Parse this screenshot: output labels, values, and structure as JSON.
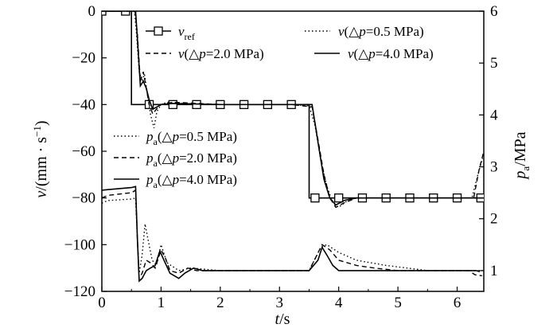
{
  "chart_data": {
    "type": "line",
    "xlabel": {
      "var": "t",
      "unit": "/s"
    },
    "ylabel_left": {
      "var": "v",
      "unit": "/(mm · s",
      "sup": "−1",
      "close": ")"
    },
    "ylabel_right": {
      "var": "p",
      "sub": "a",
      "unit": "/MPa"
    },
    "x_ticks": [
      "0",
      "1",
      "2",
      "3",
      "4",
      "5",
      "6"
    ],
    "y_left_ticks": [
      "0",
      "−20",
      "−40",
      "−60",
      "−80",
      "−100",
      "−120"
    ],
    "y_right_ticks": [
      "6",
      "5",
      "4",
      "3",
      "2",
      "1"
    ],
    "xlim": [
      0,
      6.45
    ],
    "ylim_left": [
      -120,
      0
    ],
    "ylim_right": [
      0.6,
      6
    ],
    "legend_top": [
      {
        "text": "v",
        "sub": "ref",
        "style": "square",
        "series": "v_ref"
      },
      {
        "text": "v(△p=0.5 MPa)",
        "style": "dotted",
        "series": "v_0.5"
      },
      {
        "text": "v(△p=2.0 MPa)",
        "style": "dashed",
        "series": "v_2.0"
      },
      {
        "text": "v(△p=4.0 MPa)",
        "style": "solid",
        "series": "v_4.0"
      }
    ],
    "legend_bottom": [
      {
        "pre": "p",
        "sub": "a",
        "rest": "(△p=0.5 MPa)",
        "style": "dotted"
      },
      {
        "pre": "p",
        "sub": "a",
        "rest": "(△p=2.0 MPa)",
        "style": "dashed"
      },
      {
        "pre": "p",
        "sub": "a",
        "rest": "(△p=4.0 MPa)",
        "style": "solid"
      }
    ],
    "series_velocity": [
      {
        "name": "v_ref",
        "style": "solid-square",
        "points": [
          [
            0,
            0
          ],
          [
            0.5,
            0
          ],
          [
            0.5,
            -40
          ],
          [
            3.5,
            -40
          ],
          [
            3.5,
            -80
          ],
          [
            6.45,
            -80
          ]
        ],
        "markers": [
          [
            0,
            0
          ],
          [
            0.4,
            0
          ],
          [
            0.8,
            -40
          ],
          [
            1.2,
            -40
          ],
          [
            1.6,
            -40
          ],
          [
            2.0,
            -40
          ],
          [
            2.4,
            -40
          ],
          [
            2.8,
            -40
          ],
          [
            3.2,
            -40
          ],
          [
            3.6,
            -80
          ],
          [
            4.0,
            -80
          ],
          [
            4.4,
            -80
          ],
          [
            4.8,
            -80
          ],
          [
            5.2,
            -80
          ],
          [
            5.6,
            -80
          ],
          [
            6.0,
            -80
          ],
          [
            6.4,
            -80
          ]
        ]
      },
      {
        "name": "v_0.5",
        "style": "dotted",
        "points": [
          [
            0,
            0
          ],
          [
            0.55,
            0
          ],
          [
            0.58,
            -8
          ],
          [
            0.63,
            -26
          ],
          [
            0.68,
            -30
          ],
          [
            0.72,
            -27
          ],
          [
            0.76,
            -34
          ],
          [
            0.82,
            -44
          ],
          [
            0.88,
            -50
          ],
          [
            0.93,
            -43
          ],
          [
            1.0,
            -40
          ],
          [
            1.1,
            -39
          ],
          [
            1.3,
            -39.5
          ],
          [
            2.0,
            -40
          ],
          [
            3.2,
            -40
          ],
          [
            3.5,
            -40.5
          ],
          [
            3.6,
            -49
          ],
          [
            3.7,
            -64
          ],
          [
            3.8,
            -75
          ],
          [
            3.9,
            -82
          ],
          [
            4.0,
            -84
          ],
          [
            4.2,
            -80
          ],
          [
            5.0,
            -80
          ],
          [
            6.0,
            -80
          ],
          [
            6.25,
            -80
          ],
          [
            6.35,
            -70
          ],
          [
            6.43,
            -63
          ]
        ]
      },
      {
        "name": "v_2.0",
        "style": "dashed",
        "points": [
          [
            0,
            0
          ],
          [
            0.56,
            0
          ],
          [
            0.6,
            -10
          ],
          [
            0.65,
            -30
          ],
          [
            0.7,
            -26
          ],
          [
            0.75,
            -33
          ],
          [
            0.8,
            -40
          ],
          [
            0.86,
            -44
          ],
          [
            0.92,
            -42
          ],
          [
            1.0,
            -40
          ],
          [
            1.2,
            -39
          ],
          [
            2.0,
            -40
          ],
          [
            3.2,
            -40
          ],
          [
            3.55,
            -41
          ],
          [
            3.65,
            -55
          ],
          [
            3.75,
            -70
          ],
          [
            3.85,
            -80
          ],
          [
            3.95,
            -84
          ],
          [
            4.1,
            -82
          ],
          [
            4.3,
            -80
          ],
          [
            6.0,
            -80
          ],
          [
            6.28,
            -80
          ],
          [
            6.37,
            -68
          ],
          [
            6.44,
            -61
          ]
        ]
      },
      {
        "name": "v_4.0",
        "style": "solid",
        "points": [
          [
            0,
            0
          ],
          [
            0.57,
            0
          ],
          [
            0.6,
            -12
          ],
          [
            0.65,
            -32
          ],
          [
            0.7,
            -30
          ],
          [
            0.75,
            -33
          ],
          [
            0.8,
            -38
          ],
          [
            0.86,
            -42
          ],
          [
            0.93,
            -41
          ],
          [
            1.0,
            -40
          ],
          [
            1.2,
            -39.5
          ],
          [
            2.0,
            -40
          ],
          [
            3.3,
            -40
          ],
          [
            3.55,
            -40
          ],
          [
            3.65,
            -56
          ],
          [
            3.75,
            -72
          ],
          [
            3.85,
            -80
          ],
          [
            3.95,
            -83
          ],
          [
            4.1,
            -81
          ],
          [
            4.3,
            -80
          ],
          [
            6.45,
            -80
          ]
        ]
      }
    ],
    "series_pressure": [
      {
        "name": "pa_0.5",
        "style": "dotted",
        "points": [
          [
            0,
            2.3
          ],
          [
            0.1,
            2.35
          ],
          [
            0.5,
            2.38
          ],
          [
            0.57,
            2.4
          ],
          [
            0.6,
            1.6
          ],
          [
            0.63,
            0.95
          ],
          [
            0.68,
            1.3
          ],
          [
            0.73,
            1.9
          ],
          [
            0.78,
            1.6
          ],
          [
            0.85,
            1.2
          ],
          [
            0.92,
            1.1
          ],
          [
            1.0,
            1.5
          ],
          [
            1.1,
            1.15
          ],
          [
            1.3,
            1.0
          ],
          [
            1.5,
            1.05
          ],
          [
            2.0,
            1.0
          ],
          [
            3.0,
            1.0
          ],
          [
            3.5,
            1.0
          ],
          [
            3.7,
            1.45
          ],
          [
            3.8,
            1.5
          ],
          [
            4.0,
            1.35
          ],
          [
            4.3,
            1.2
          ],
          [
            4.8,
            1.1
          ],
          [
            5.5,
            1.0
          ],
          [
            6.45,
            1.0
          ]
        ]
      },
      {
        "name": "pa_2.0",
        "style": "dashed",
        "points": [
          [
            0,
            2.4
          ],
          [
            0.1,
            2.45
          ],
          [
            0.5,
            2.5
          ],
          [
            0.57,
            2.55
          ],
          [
            0.6,
            1.6
          ],
          [
            0.63,
            0.85
          ],
          [
            0.68,
            0.95
          ],
          [
            0.75,
            1.2
          ],
          [
            0.82,
            1.15
          ],
          [
            0.9,
            1.05
          ],
          [
            1.0,
            1.4
          ],
          [
            1.07,
            1.25
          ],
          [
            1.15,
            1.0
          ],
          [
            1.3,
            0.95
          ],
          [
            1.45,
            1.05
          ],
          [
            1.6,
            1.0
          ],
          [
            2.0,
            1.0
          ],
          [
            3.0,
            1.0
          ],
          [
            3.5,
            1.0
          ],
          [
            3.72,
            1.5
          ],
          [
            3.85,
            1.4
          ],
          [
            4.0,
            1.2
          ],
          [
            4.3,
            1.1
          ],
          [
            4.6,
            1.05
          ],
          [
            5.0,
            1.0
          ],
          [
            6.2,
            1.0
          ],
          [
            6.3,
            0.92
          ],
          [
            6.42,
            0.9
          ]
        ]
      },
      {
        "name": "pa_4.0",
        "style": "solid",
        "points": [
          [
            0,
            2.55
          ],
          [
            0.1,
            2.56
          ],
          [
            0.5,
            2.6
          ],
          [
            0.57,
            2.62
          ],
          [
            0.6,
            1.6
          ],
          [
            0.63,
            0.8
          ],
          [
            0.68,
            0.85
          ],
          [
            0.75,
            1.0
          ],
          [
            0.82,
            1.05
          ],
          [
            0.9,
            1.1
          ],
          [
            0.98,
            1.38
          ],
          [
            1.05,
            1.2
          ],
          [
            1.15,
            0.95
          ],
          [
            1.3,
            0.85
          ],
          [
            1.4,
            0.95
          ],
          [
            1.55,
            1.05
          ],
          [
            1.7,
            1.0
          ],
          [
            2.0,
            1.0
          ],
          [
            3.0,
            1.0
          ],
          [
            3.5,
            1.0
          ],
          [
            3.65,
            1.2
          ],
          [
            3.72,
            1.45
          ],
          [
            3.8,
            1.3
          ],
          [
            3.9,
            1.1
          ],
          [
            4.0,
            1.0
          ],
          [
            5.0,
            1.0
          ],
          [
            6.2,
            1.0
          ],
          [
            6.32,
            1.0
          ],
          [
            6.38,
            0.98
          ]
        ]
      }
    ]
  }
}
